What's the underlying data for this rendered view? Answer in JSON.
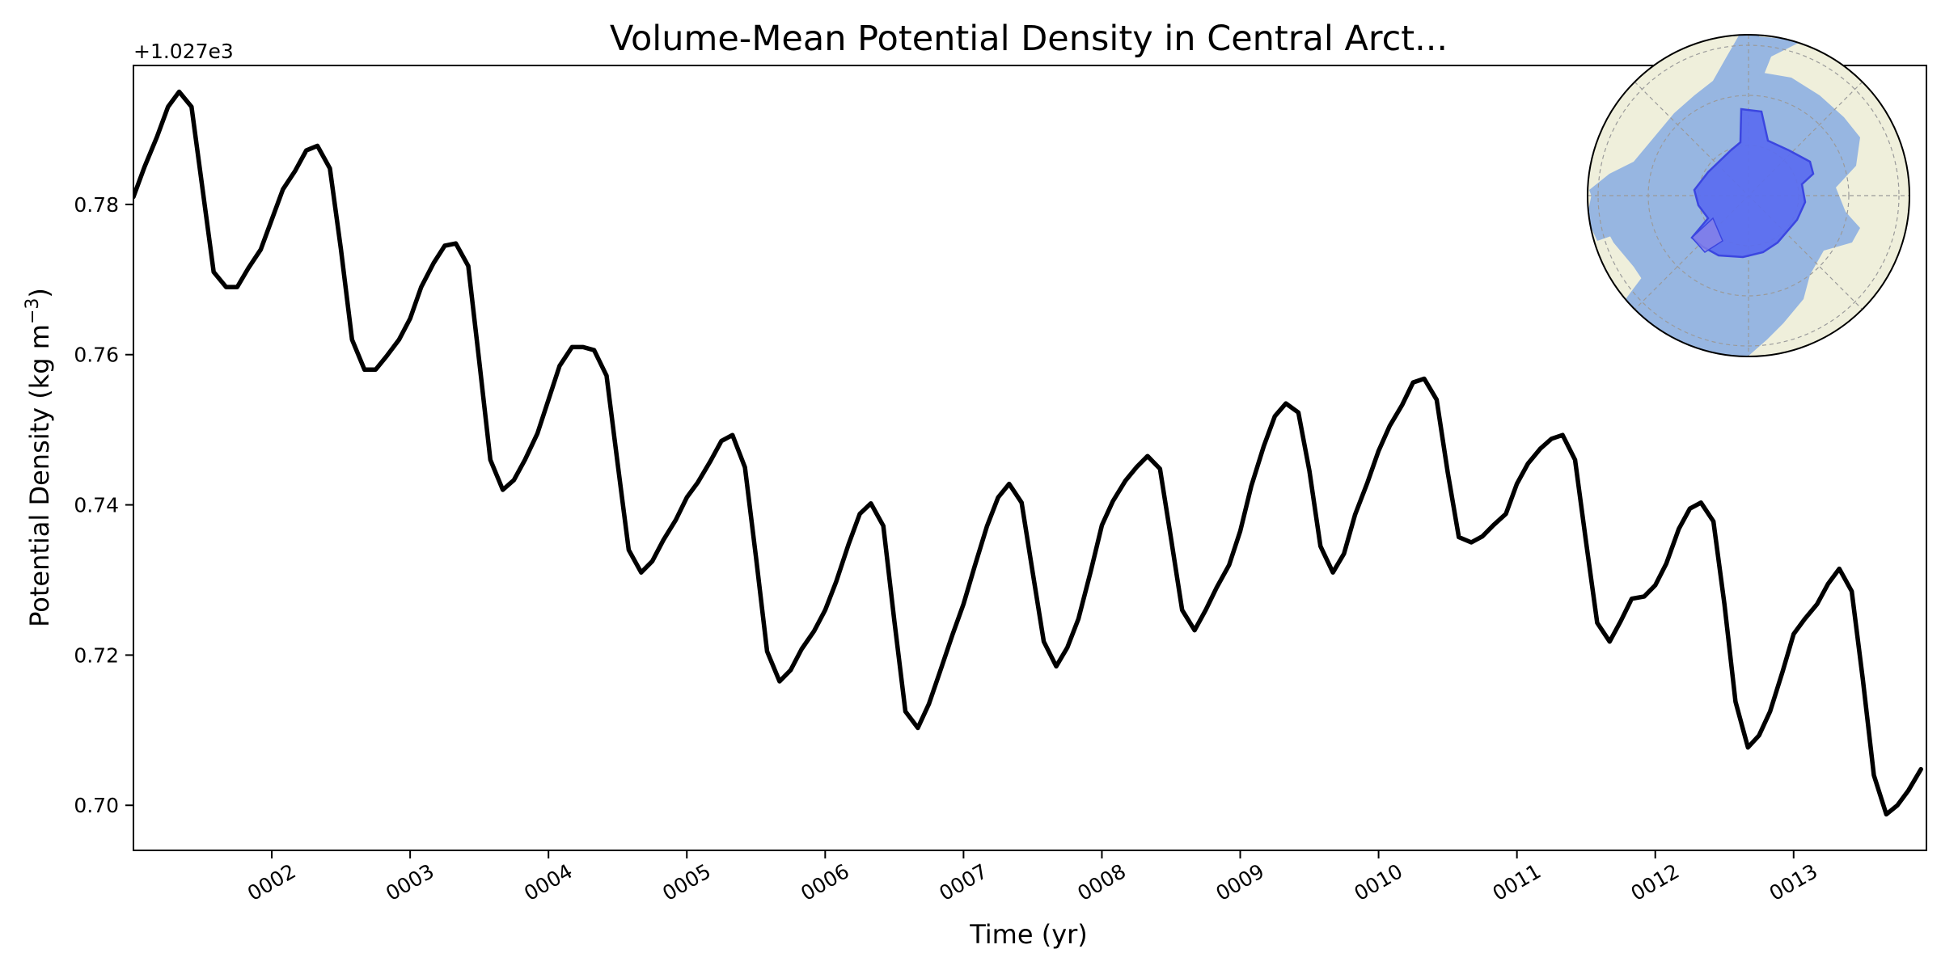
{
  "chart_data": {
    "type": "line",
    "title": "Volume-Mean Potential Density in Central Arct...",
    "xlabel": "Time (yr)",
    "ylabel_main": "Potential Density (kg m",
    "ylabel_sup": "−3",
    "ylabel_close": ")",
    "y_offset_text": "+1.027e3",
    "xlim": [
      1.0,
      13.96
    ],
    "ylim": [
      0.694,
      0.7985
    ],
    "x_ticks": [
      {
        "value": 2,
        "label": "0002"
      },
      {
        "value": 3,
        "label": "0003"
      },
      {
        "value": 4,
        "label": "0004"
      },
      {
        "value": 5,
        "label": "0005"
      },
      {
        "value": 6,
        "label": "0006"
      },
      {
        "value": 7,
        "label": "0007"
      },
      {
        "value": 8,
        "label": "0008"
      },
      {
        "value": 9,
        "label": "0009"
      },
      {
        "value": 10,
        "label": "0010"
      },
      {
        "value": 11,
        "label": "0011"
      },
      {
        "value": 12,
        "label": "0012"
      },
      {
        "value": 13,
        "label": "0013"
      }
    ],
    "y_ticks": [
      {
        "value": 0.7,
        "label": "0.70"
      },
      {
        "value": 0.72,
        "label": "0.72"
      },
      {
        "value": 0.74,
        "label": "0.74"
      },
      {
        "value": 0.76,
        "label": "0.76"
      },
      {
        "value": 0.78,
        "label": "0.78"
      }
    ],
    "grid": false,
    "line_color": "#000000",
    "series": [
      {
        "x": [
          1.0,
          1.08,
          1.17,
          1.25,
          1.33,
          1.42,
          1.5,
          1.58,
          1.67,
          1.75,
          1.83,
          1.92,
          2.0,
          2.08,
          2.17,
          2.25,
          2.33,
          2.42,
          2.5,
          2.58,
          2.67,
          2.75,
          2.83,
          2.92,
          3.0,
          3.08,
          3.17,
          3.25,
          3.33,
          3.42,
          3.5,
          3.58,
          3.67,
          3.75,
          3.83,
          3.92,
          4.0,
          4.08,
          4.17,
          4.25,
          4.33,
          4.42,
          4.5,
          4.58,
          4.67,
          4.75,
          4.83,
          4.92,
          5.0,
          5.08,
          5.17,
          5.25,
          5.33,
          5.42,
          5.5,
          5.58,
          5.67,
          5.75,
          5.83,
          5.92,
          6.0,
          6.08,
          6.17,
          6.25,
          6.33,
          6.42,
          6.5,
          6.58,
          6.67,
          6.75,
          6.83,
          6.92,
          7.0,
          7.08,
          7.17,
          7.25,
          7.33,
          7.42,
          7.5,
          7.58,
          7.67,
          7.75,
          7.83,
          7.92,
          8.0,
          8.08,
          8.17,
          8.25,
          8.33,
          8.42,
          8.5,
          8.58,
          8.67,
          8.75,
          8.83,
          8.92,
          9.0,
          9.08,
          9.17,
          9.25,
          9.33,
          9.42,
          9.5,
          9.58,
          9.67,
          9.75,
          9.83,
          9.92,
          10.0,
          10.08,
          10.17,
          10.25,
          10.33,
          10.42,
          10.5,
          10.58,
          10.67,
          10.75,
          10.83,
          10.92,
          11.0,
          11.08,
          11.17,
          11.25,
          11.33,
          11.42,
          11.5,
          11.58,
          11.67,
          11.75,
          11.83,
          11.92,
          12.0,
          12.08,
          12.17,
          12.25,
          12.33,
          12.42,
          12.5,
          12.58,
          12.67,
          12.75,
          12.83,
          12.92,
          13.0,
          13.08,
          13.17,
          13.25,
          13.33,
          13.42,
          13.5,
          13.58,
          13.67,
          13.75,
          13.83,
          13.92
        ],
        "y": [
          0.781,
          0.785,
          0.789,
          0.793,
          0.795,
          0.793,
          0.782,
          0.771,
          0.769,
          0.769,
          0.7715,
          0.774,
          0.778,
          0.782,
          0.7845,
          0.7872,
          0.7878,
          0.7848,
          0.774,
          0.762,
          0.758,
          0.758,
          0.7598,
          0.762,
          0.7648,
          0.769,
          0.7722,
          0.7745,
          0.7748,
          0.7718,
          0.759,
          0.746,
          0.742,
          0.7433,
          0.746,
          0.7495,
          0.754,
          0.7585,
          0.761,
          0.761,
          0.7606,
          0.7572,
          0.7455,
          0.734,
          0.731,
          0.7325,
          0.7353,
          0.738,
          0.741,
          0.743,
          0.7458,
          0.7485,
          0.7493,
          0.745,
          0.733,
          0.7205,
          0.7165,
          0.718,
          0.7208,
          0.7232,
          0.726,
          0.7298,
          0.7348,
          0.7388,
          0.7402,
          0.7372,
          0.7245,
          0.7125,
          0.7103,
          0.7135,
          0.7178,
          0.7227,
          0.7268,
          0.7318,
          0.7372,
          0.741,
          0.7428,
          0.7403,
          0.731,
          0.7218,
          0.7185,
          0.721,
          0.7248,
          0.7312,
          0.7373,
          0.7405,
          0.7432,
          0.745,
          0.7465,
          0.7448,
          0.7355,
          0.726,
          0.7233,
          0.726,
          0.729,
          0.732,
          0.7365,
          0.7425,
          0.7478,
          0.7518,
          0.7535,
          0.7523,
          0.7445,
          0.7345,
          0.731,
          0.7335,
          0.7387,
          0.743,
          0.7472,
          0.7505,
          0.7533,
          0.7563,
          0.7568,
          0.754,
          0.7443,
          0.7357,
          0.735,
          0.7358,
          0.7373,
          0.7388,
          0.7428,
          0.7455,
          0.7475,
          0.7488,
          0.7493,
          0.746,
          0.735,
          0.7243,
          0.7218,
          0.7245,
          0.7275,
          0.7278,
          0.7293,
          0.7322,
          0.7368,
          0.7395,
          0.7403,
          0.7378,
          0.7268,
          0.7138,
          0.7077,
          0.7093,
          0.7125,
          0.7178,
          0.7228,
          0.7248,
          0.7268,
          0.7295,
          0.7315,
          0.7285,
          0.7168,
          0.704,
          0.6988,
          0.7,
          0.702,
          0.7048
        ]
      }
    ],
    "inset_map": {
      "projection": "north-polar-stereographic",
      "land_color": "#efefdb",
      "ocean_color": "#97b6e1",
      "region_color": "#5a6cf0",
      "region_edge_color": "#3b46e0",
      "gridline_color": "#9a9a9a"
    }
  }
}
